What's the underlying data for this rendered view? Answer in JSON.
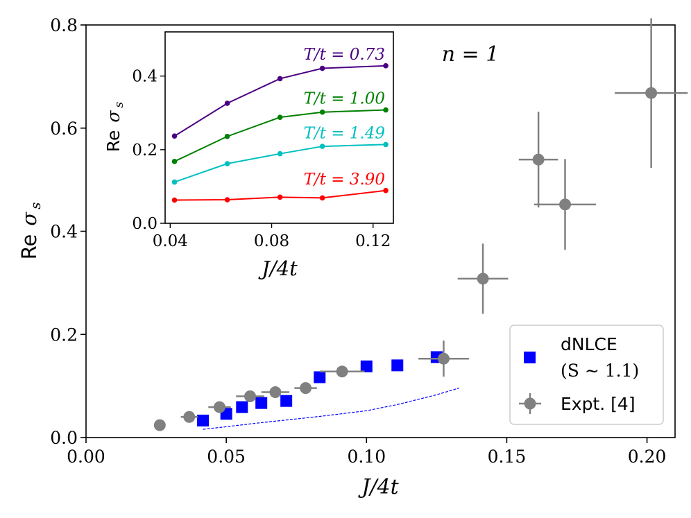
{
  "chart_data": [
    {
      "id": "main",
      "type": "scatter",
      "title": "",
      "xlabel": "J/4t",
      "ylabel_prefix": "Re",
      "ylabel_symbol": "σ",
      "ylabel_sub": "s",
      "xlim": [
        0.0,
        0.21
      ],
      "ylim": [
        0.0,
        0.8
      ],
      "xticks": [
        0.0,
        0.05,
        0.1,
        0.15,
        0.2
      ],
      "xtick_labels": [
        "0.00",
        "0.05",
        "0.10",
        "0.15",
        "0.20"
      ],
      "yticks": [
        0.0,
        0.2,
        0.4,
        0.6,
        0.8
      ],
      "ytick_labels": [
        "0.0",
        "0.2",
        "0.4",
        "0.6",
        "0.8"
      ],
      "annotation": "n = 1",
      "legend_position": "lower-right",
      "series": [
        {
          "name": "dNLCE",
          "name_line2": "(S ~ 1.1)",
          "marker": "square",
          "color": "#0000ff",
          "points": [
            {
              "x": 0.0417,
              "y": 0.033
            },
            {
              "x": 0.05,
              "y": 0.046
            },
            {
              "x": 0.0556,
              "y": 0.059
            },
            {
              "x": 0.0625,
              "y": 0.067
            },
            {
              "x": 0.0714,
              "y": 0.071
            },
            {
              "x": 0.0833,
              "y": 0.117
            },
            {
              "x": 0.1,
              "y": 0.138
            },
            {
              "x": 0.111,
              "y": 0.14
            },
            {
              "x": 0.125,
              "y": 0.156
            }
          ]
        },
        {
          "name": "",
          "line": "dashed",
          "color": "#0000ff",
          "points": [
            {
              "x": 0.0417,
              "y": 0.016
            },
            {
              "x": 0.05,
              "y": 0.021
            },
            {
              "x": 0.0625,
              "y": 0.029
            },
            {
              "x": 0.0714,
              "y": 0.034
            },
            {
              "x": 0.0833,
              "y": 0.041
            },
            {
              "x": 0.1,
              "y": 0.052
            },
            {
              "x": 0.111,
              "y": 0.064
            },
            {
              "x": 0.125,
              "y": 0.083
            },
            {
              "x": 0.133,
              "y": 0.096
            }
          ]
        },
        {
          "name": "Expt. [4]",
          "marker": "circle",
          "color": "#808080",
          "points": [
            {
              "x": 0.0263,
              "y": 0.024,
              "xerr": 0,
              "yerr": 0
            },
            {
              "x": 0.0368,
              "y": 0.04,
              "xerr": 0.003,
              "yerr": 0
            },
            {
              "x": 0.0476,
              "y": 0.059,
              "xerr": 0.004,
              "yerr": 0
            },
            {
              "x": 0.0585,
              "y": 0.08,
              "xerr": 0.005,
              "yerr": 0
            },
            {
              "x": 0.0675,
              "y": 0.088,
              "xerr": 0.005,
              "yerr": 0
            },
            {
              "x": 0.0783,
              "y": 0.096,
              "xerr": 0.004,
              "yerr": 0.01
            },
            {
              "x": 0.0913,
              "y": 0.128,
              "xerr": 0.008,
              "yerr": 0.01
            },
            {
              "x": 0.1275,
              "y": 0.153,
              "xerr": 0.009,
              "yerr": 0.035
            },
            {
              "x": 0.1415,
              "y": 0.308,
              "xerr": 0.009,
              "yerr": 0.068
            },
            {
              "x": 0.1613,
              "y": 0.539,
              "xerr": 0.007,
              "yerr": 0.093
            },
            {
              "x": 0.1708,
              "y": 0.452,
              "xerr": 0.011,
              "yerr": 0.088
            },
            {
              "x": 0.2015,
              "y": 0.668,
              "xerr": 0.013,
              "yerr": 0.145
            }
          ]
        }
      ]
    },
    {
      "id": "inset",
      "type": "line",
      "xlabel": "J/4t",
      "ylabel_prefix": "Re",
      "ylabel_symbol": "σ",
      "ylabel_sub": "s",
      "xlim": [
        0.038,
        0.128
      ],
      "ylim": [
        0.0,
        0.52
      ],
      "xticks": [
        0.04,
        0.08,
        0.12
      ],
      "xtick_labels": [
        "0.04",
        "0.08",
        "0.12"
      ],
      "yticks": [
        0.0,
        0.2,
        0.4
      ],
      "ytick_labels": [
        "0.0",
        "0.2",
        "0.4"
      ],
      "x": [
        0.0417,
        0.0625,
        0.0833,
        0.1,
        0.125
      ],
      "series": [
        {
          "name": "T/t = 0.73",
          "color": "#4b0082",
          "values": [
            0.237,
            0.326,
            0.393,
            0.421,
            0.428
          ]
        },
        {
          "name": "T/t = 1.00",
          "color": "#008000",
          "values": [
            0.168,
            0.236,
            0.288,
            0.302,
            0.308
          ]
        },
        {
          "name": "T/t = 1.49",
          "color": "#00bfbf",
          "values": [
            0.112,
            0.162,
            0.189,
            0.209,
            0.214
          ]
        },
        {
          "name": "T/t = 3.90",
          "color": "#ff0000",
          "values": [
            0.063,
            0.064,
            0.071,
            0.069,
            0.089
          ]
        }
      ]
    }
  ],
  "legend": {
    "entries": [
      {
        "label_line1": "dNLCE",
        "label_line2": "(S ∼ 1.1)",
        "color": "#0000ff",
        "marker": "square"
      },
      {
        "label_line1": "Expt. [4]",
        "color": "#808080",
        "marker": "circle-errorbar"
      }
    ]
  }
}
